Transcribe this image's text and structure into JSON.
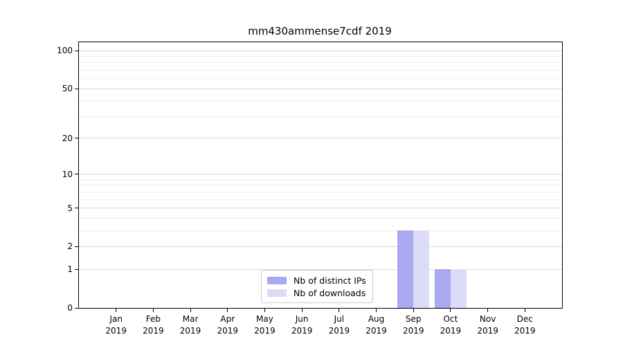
{
  "chart_data": {
    "type": "bar",
    "title": "mm430ammense7cdf 2019",
    "categories": [
      "Jan",
      "Feb",
      "Mar",
      "Apr",
      "May",
      "Jun",
      "Jul",
      "Aug",
      "Sep",
      "Oct",
      "Nov",
      "Dec"
    ],
    "category_year": "2019",
    "series": [
      {
        "name": "Nb of distinct IPs",
        "color": "#a9a9f2",
        "values": [
          0,
          0,
          0,
          0,
          0,
          0,
          0,
          0,
          3,
          1,
          0,
          0
        ]
      },
      {
        "name": "Nb of downloads",
        "color": "#dcdcf9",
        "values": [
          0,
          0,
          0,
          0,
          0,
          0,
          0,
          0,
          3,
          1,
          0,
          0
        ]
      }
    ],
    "xlabel": "",
    "ylabel": "",
    "y_scale": "log1p",
    "ylim": [
      0,
      100
    ],
    "y_major_ticks": [
      0,
      1,
      2,
      5,
      10,
      20,
      50,
      100
    ],
    "y_minor_ticks": [
      3,
      4,
      6,
      7,
      8,
      9,
      30,
      40,
      60,
      70,
      80,
      90
    ],
    "grid": "horizontal, major and minor",
    "legend_position": "lower center inside plot",
    "colors": {
      "grid_major": "#d7d7d7",
      "grid_minor": "#ededed",
      "spine": "#000000",
      "text": "#000000",
      "legend_border": "#cccccc",
      "background": "#ffffff"
    }
  }
}
